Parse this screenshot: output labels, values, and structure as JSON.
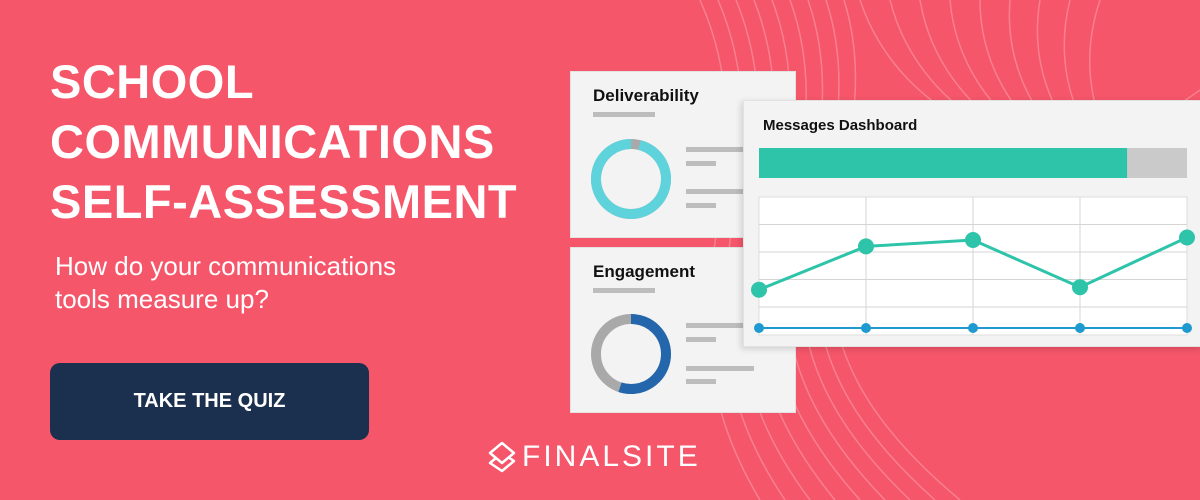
{
  "hero": {
    "headline": [
      "SCHOOL",
      "COMMUNICATIONS",
      "SELF-ASSESSMENT"
    ],
    "subtitle": [
      "How do your communications",
      "tools measure up?"
    ],
    "cta_label": "TAKE THE QUIZ"
  },
  "illustration": {
    "deliverability": {
      "title": "Deliverability",
      "level": 0.96,
      "color": "#5FD3DC"
    },
    "engagement": {
      "title": "Engagement",
      "level": 0.55,
      "color": "#2366AC"
    },
    "dashboard": {
      "title": "Messages Dashboard",
      "progress": 0.86,
      "progress_color": "#2EC4AA",
      "line_values": [
        1.5,
        3.2,
        3.45,
        1.6,
        3.55
      ],
      "baseline_values": [
        0,
        0,
        0,
        0,
        0
      ],
      "line_color": "#2EC4AA",
      "baseline_color": "#1E9AD0"
    }
  },
  "brand": {
    "name": "FINALSITE"
  },
  "colors": {
    "background": "#F5566A",
    "button": "#1B2F4E"
  }
}
